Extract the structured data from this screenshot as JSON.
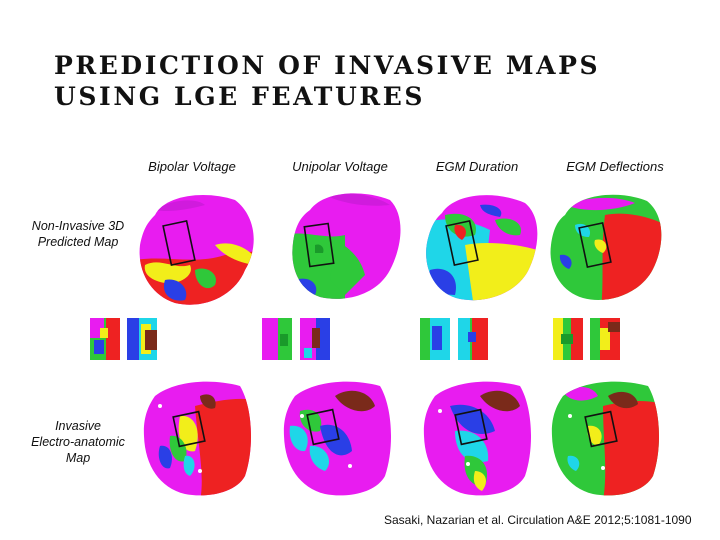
{
  "slide": {
    "title_line1": "PREDICTION OF INVASIVE MAPS",
    "title_line2": "USING LGE FEATURES",
    "columns": [
      "Bipolar Voltage",
      "Unipolar Voltage",
      "EGM Duration",
      "EGM Deflections"
    ],
    "rows": {
      "noninvasive": {
        "line1": "Non-Invasive 3D",
        "line2": "Predicted Map"
      },
      "invasive": {
        "line1": "Invasive",
        "line2": "Electro-anatomic",
        "line3": "Map"
      }
    },
    "citation": "Sasaki, Nazarian et al. Circulation A&E 2012;5:1081-1090"
  },
  "colors": {
    "magenta": "#e81cf0",
    "red": "#ee2222",
    "yellow": "#f2ee1a",
    "green": "#2fc83a",
    "cyan": "#1fd6e8",
    "blue": "#2a3fe6",
    "brown": "#7a2a1a"
  }
}
